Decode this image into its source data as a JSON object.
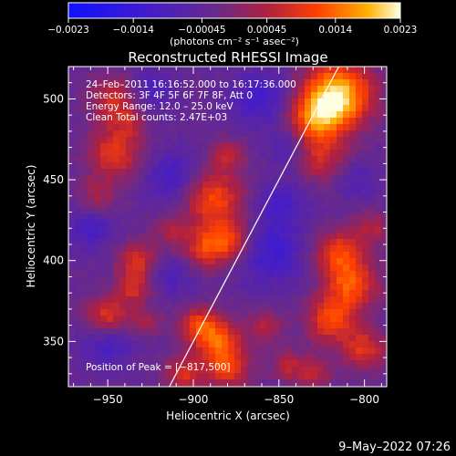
{
  "chart_data": {
    "type": "heatmap",
    "title": "Reconstructed RHESSI Image",
    "xlabel": "Heliocentric X (arcsec)",
    "ylabel": "Heliocentric Y (arcsec)",
    "xlim": [
      -973,
      -787
    ],
    "ylim": [
      322,
      520
    ],
    "xticks": [
      -950,
      -900,
      -850,
      -800
    ],
    "yticks": [
      350,
      400,
      450,
      500
    ],
    "xtick_labels": [
      "−950",
      "−900",
      "−850",
      "−800"
    ],
    "ytick_labels": [
      "350",
      "400",
      "450",
      "500"
    ],
    "colorbar": {
      "min": -0.0023,
      "max": 0.0023,
      "ticks": [
        -0.0023,
        -0.0014,
        -0.00045,
        0.00045,
        0.0014,
        0.0023
      ],
      "tick_labels": [
        "−0.0023",
        "−0.0014",
        "−0.00045",
        "0.00045",
        "0.0014",
        "0.0023"
      ],
      "unit_label": "(photons cm⁻² s⁻¹ asec⁻²)"
    },
    "annotations": [
      "24–Feb–2011 16:16:52.000 to 16:17:36.000",
      "Detectors: 3F 4F 5F 6F 7F 8F, Att 0",
      "Energy Range: 12.0 – 25.0 keV",
      "Clean     Total counts: 2.47E+03",
      "Position of Peak = [−817,500]"
    ],
    "peak": {
      "x": -817,
      "y": 500
    },
    "limb_line": {
      "x": [
        -914,
        -815
      ],
      "y": [
        322,
        520
      ]
    },
    "sources": [
      {
        "x": -815,
        "y": 503,
        "r": 14,
        "v": 0.0023
      },
      {
        "x": -828,
        "y": 488,
        "r": 12,
        "v": 0.0016
      },
      {
        "x": -825,
        "y": 462,
        "r": 10,
        "v": 0.0009
      },
      {
        "x": -946,
        "y": 500,
        "r": 10,
        "v": 0.0011
      },
      {
        "x": -946,
        "y": 467,
        "r": 11,
        "v": 0.0013
      },
      {
        "x": -956,
        "y": 440,
        "r": 8,
        "v": 0.0007
      },
      {
        "x": -937,
        "y": 485,
        "r": 7,
        "v": 0.0006
      },
      {
        "x": -888,
        "y": 438,
        "r": 12,
        "v": 0.0015
      },
      {
        "x": -878,
        "y": 412,
        "r": 9,
        "v": 0.0013
      },
      {
        "x": -893,
        "y": 408,
        "r": 9,
        "v": 0.0012
      },
      {
        "x": -880,
        "y": 465,
        "r": 7,
        "v": 0.0009
      },
      {
        "x": -913,
        "y": 418,
        "r": 7,
        "v": 0.0007
      },
      {
        "x": -933,
        "y": 400,
        "r": 8,
        "v": 0.0011
      },
      {
        "x": -935,
        "y": 383,
        "r": 7,
        "v": 0.001
      },
      {
        "x": -950,
        "y": 365,
        "r": 9,
        "v": 0.0014
      },
      {
        "x": -928,
        "y": 362,
        "r": 6,
        "v": 0.0007
      },
      {
        "x": -897,
        "y": 360,
        "r": 8,
        "v": 0.0012
      },
      {
        "x": -885,
        "y": 350,
        "r": 10,
        "v": 0.0014
      },
      {
        "x": -880,
        "y": 333,
        "r": 9,
        "v": 0.0012
      },
      {
        "x": -905,
        "y": 330,
        "r": 8,
        "v": 0.0011
      },
      {
        "x": -857,
        "y": 360,
        "r": 7,
        "v": 0.0008
      },
      {
        "x": -845,
        "y": 335,
        "r": 7,
        "v": 0.0008
      },
      {
        "x": -815,
        "y": 405,
        "r": 10,
        "v": 0.0013
      },
      {
        "x": -808,
        "y": 385,
        "r": 11,
        "v": 0.0015
      },
      {
        "x": -820,
        "y": 363,
        "r": 10,
        "v": 0.0014
      },
      {
        "x": -800,
        "y": 345,
        "r": 9,
        "v": 0.0012
      },
      {
        "x": -830,
        "y": 330,
        "r": 7,
        "v": 0.0009
      },
      {
        "x": -795,
        "y": 420,
        "r": 7,
        "v": 0.0008
      },
      {
        "x": -950,
        "y": 350,
        "r": 10,
        "v": -0.0009
      },
      {
        "x": -960,
        "y": 420,
        "r": 9,
        "v": -0.0007
      },
      {
        "x": -912,
        "y": 452,
        "r": 11,
        "v": -0.0008
      },
      {
        "x": -912,
        "y": 390,
        "r": 8,
        "v": -0.0006
      },
      {
        "x": -855,
        "y": 405,
        "r": 14,
        "v": -0.0009
      },
      {
        "x": -848,
        "y": 435,
        "r": 10,
        "v": -0.0007
      },
      {
        "x": -860,
        "y": 500,
        "r": 12,
        "v": -0.0009
      },
      {
        "x": -845,
        "y": 470,
        "r": 8,
        "v": -0.0006
      },
      {
        "x": -925,
        "y": 505,
        "r": 9,
        "v": -0.0007
      },
      {
        "x": -805,
        "y": 450,
        "r": 8,
        "v": -0.0005
      }
    ]
  },
  "footer": {
    "date": "9–May–2022 07:26"
  }
}
